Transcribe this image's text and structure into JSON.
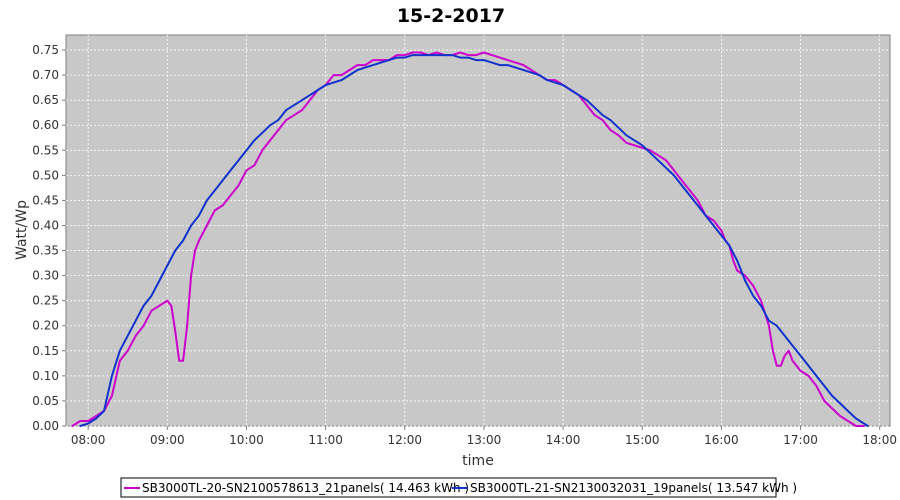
{
  "chart_data": {
    "type": "line",
    "title": "15-2-2017",
    "xlabel": "time",
    "ylabel": "Watt/Wp",
    "xlim": [
      7.72,
      18.13
    ],
    "ylim": [
      0.0,
      0.78
    ],
    "x_ticks": [
      "08:00",
      "09:00",
      "10:00",
      "11:00",
      "12:00",
      "13:00",
      "14:00",
      "15:00",
      "16:00",
      "17:00",
      "18:00"
    ],
    "y_ticks": [
      "0.00",
      "0.05",
      "0.10",
      "0.15",
      "0.20",
      "0.25",
      "0.30",
      "0.35",
      "0.40",
      "0.45",
      "0.50",
      "0.55",
      "0.60",
      "0.65",
      "0.70",
      "0.75"
    ],
    "grid": true,
    "legend_position": "bottom",
    "series": [
      {
        "name": "SB3000TL-20-SN2100578613_21panels( 14.463 kWh )",
        "color": "#cc00cc",
        "x": [
          7.8,
          7.9,
          8.0,
          8.1,
          8.2,
          8.3,
          8.4,
          8.5,
          8.6,
          8.7,
          8.8,
          8.9,
          9.0,
          9.05,
          9.1,
          9.15,
          9.2,
          9.25,
          9.3,
          9.35,
          9.4,
          9.5,
          9.6,
          9.7,
          9.8,
          9.9,
          10.0,
          10.1,
          10.2,
          10.3,
          10.4,
          10.5,
          10.6,
          10.7,
          10.8,
          10.9,
          11.0,
          11.1,
          11.2,
          11.3,
          11.4,
          11.5,
          11.6,
          11.7,
          11.8,
          11.9,
          12.0,
          12.1,
          12.2,
          12.3,
          12.4,
          12.5,
          12.6,
          12.7,
          12.8,
          12.9,
          13.0,
          13.1,
          13.2,
          13.3,
          13.4,
          13.5,
          13.6,
          13.7,
          13.8,
          13.9,
          14.0,
          14.1,
          14.2,
          14.3,
          14.4,
          14.5,
          14.6,
          14.7,
          14.8,
          14.9,
          15.0,
          15.1,
          15.2,
          15.3,
          15.4,
          15.5,
          15.6,
          15.7,
          15.8,
          15.9,
          16.0,
          16.05,
          16.1,
          16.15,
          16.2,
          16.3,
          16.4,
          16.5,
          16.6,
          16.65,
          16.7,
          16.75,
          16.8,
          16.85,
          16.9,
          17.0,
          17.1,
          17.2,
          17.3,
          17.4,
          17.5,
          17.6,
          17.7,
          17.8
        ],
        "values": [
          0.0,
          0.01,
          0.01,
          0.02,
          0.03,
          0.06,
          0.13,
          0.15,
          0.18,
          0.2,
          0.23,
          0.24,
          0.25,
          0.24,
          0.19,
          0.13,
          0.13,
          0.2,
          0.3,
          0.35,
          0.37,
          0.4,
          0.43,
          0.44,
          0.46,
          0.48,
          0.51,
          0.52,
          0.55,
          0.57,
          0.59,
          0.61,
          0.62,
          0.63,
          0.65,
          0.67,
          0.68,
          0.7,
          0.7,
          0.71,
          0.72,
          0.72,
          0.73,
          0.73,
          0.73,
          0.74,
          0.74,
          0.745,
          0.745,
          0.74,
          0.745,
          0.74,
          0.74,
          0.745,
          0.74,
          0.74,
          0.745,
          0.74,
          0.735,
          0.73,
          0.725,
          0.72,
          0.71,
          0.7,
          0.69,
          0.69,
          0.68,
          0.67,
          0.66,
          0.64,
          0.62,
          0.61,
          0.59,
          0.58,
          0.565,
          0.56,
          0.555,
          0.55,
          0.54,
          0.53,
          0.51,
          0.49,
          0.47,
          0.45,
          0.42,
          0.41,
          0.39,
          0.37,
          0.36,
          0.33,
          0.31,
          0.3,
          0.28,
          0.25,
          0.2,
          0.15,
          0.12,
          0.12,
          0.14,
          0.15,
          0.13,
          0.11,
          0.1,
          0.08,
          0.05,
          0.035,
          0.02,
          0.01,
          0.0,
          0.0
        ]
      },
      {
        "name": "SB3000TL-21-SN2130032031_19panels( 13.547 kWh )",
        "color": "#1133cc",
        "x": [
          7.9,
          8.0,
          8.1,
          8.2,
          8.3,
          8.4,
          8.5,
          8.6,
          8.7,
          8.8,
          8.9,
          9.0,
          9.1,
          9.2,
          9.3,
          9.4,
          9.5,
          9.6,
          9.7,
          9.8,
          9.9,
          10.0,
          10.1,
          10.2,
          10.3,
          10.4,
          10.5,
          10.6,
          10.7,
          10.8,
          10.9,
          11.0,
          11.1,
          11.2,
          11.3,
          11.4,
          11.5,
          11.6,
          11.7,
          11.8,
          11.9,
          12.0,
          12.1,
          12.2,
          12.3,
          12.4,
          12.5,
          12.6,
          12.7,
          12.8,
          12.9,
          13.0,
          13.1,
          13.2,
          13.3,
          13.4,
          13.5,
          13.6,
          13.7,
          13.8,
          13.9,
          14.0,
          14.1,
          14.2,
          14.3,
          14.4,
          14.5,
          14.6,
          14.7,
          14.8,
          14.9,
          15.0,
          15.1,
          15.2,
          15.3,
          15.4,
          15.5,
          15.6,
          15.7,
          15.8,
          15.9,
          16.0,
          16.1,
          16.2,
          16.3,
          16.4,
          16.5,
          16.6,
          16.7,
          16.8,
          16.9,
          17.0,
          17.1,
          17.2,
          17.3,
          17.4,
          17.5,
          17.6,
          17.7,
          17.8,
          17.85
        ],
        "values": [
          0.0,
          0.005,
          0.015,
          0.03,
          0.1,
          0.15,
          0.18,
          0.21,
          0.24,
          0.26,
          0.29,
          0.32,
          0.35,
          0.37,
          0.4,
          0.42,
          0.45,
          0.47,
          0.49,
          0.51,
          0.53,
          0.55,
          0.57,
          0.585,
          0.6,
          0.61,
          0.63,
          0.64,
          0.65,
          0.66,
          0.67,
          0.68,
          0.685,
          0.69,
          0.7,
          0.71,
          0.715,
          0.72,
          0.725,
          0.73,
          0.735,
          0.735,
          0.74,
          0.74,
          0.74,
          0.74,
          0.74,
          0.74,
          0.735,
          0.735,
          0.73,
          0.73,
          0.725,
          0.72,
          0.72,
          0.715,
          0.71,
          0.705,
          0.7,
          0.69,
          0.685,
          0.68,
          0.67,
          0.66,
          0.65,
          0.635,
          0.62,
          0.61,
          0.595,
          0.58,
          0.57,
          0.56,
          0.545,
          0.53,
          0.515,
          0.5,
          0.48,
          0.46,
          0.44,
          0.42,
          0.4,
          0.38,
          0.36,
          0.33,
          0.29,
          0.26,
          0.24,
          0.21,
          0.2,
          0.18,
          0.16,
          0.14,
          0.12,
          0.1,
          0.08,
          0.06,
          0.045,
          0.03,
          0.015,
          0.005,
          0.0
        ]
      }
    ]
  }
}
